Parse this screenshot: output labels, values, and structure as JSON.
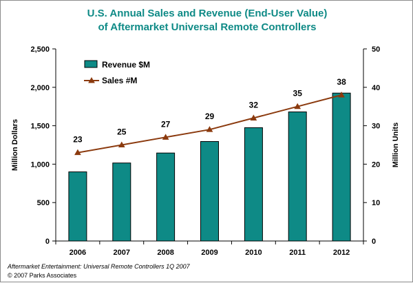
{
  "colors": {
    "title": "#0e8a86",
    "bar_fill": "#0e8a86",
    "bar_stroke": "#000000",
    "line": "#8b3a0e",
    "marker": "#8b3a0e",
    "axis": "#000000",
    "grid": "#000000"
  },
  "chart_data": {
    "type": "bar+line",
    "title": "U.S. Annual Sales and Revenue (End-User Value)",
    "subtitle": "of Aftermarket Universal Remote Controllers",
    "categories": [
      "2006",
      "2007",
      "2008",
      "2009",
      "2010",
      "2011",
      "2012"
    ],
    "series": [
      {
        "name": "Revenue $M",
        "type": "bar",
        "axis": "left",
        "values": [
          900,
          1015,
          1145,
          1295,
          1475,
          1680,
          1925
        ]
      },
      {
        "name": "Sales #M",
        "type": "line",
        "axis": "right",
        "values": [
          23,
          25,
          27,
          29,
          32,
          35,
          38
        ],
        "data_labels": [
          "23",
          "25",
          "27",
          "29",
          "32",
          "35",
          "38"
        ]
      }
    ],
    "ylabel": "Million Dollars",
    "ylim": [
      0,
      2500
    ],
    "yticks": [
      "0",
      "500",
      "1,000",
      "1,500",
      "2,000",
      "2,500"
    ],
    "y2label": "Million Units",
    "y2lim": [
      0,
      50
    ],
    "y2ticks": [
      "0",
      "10",
      "20",
      "30",
      "40",
      "50"
    ],
    "grid": false,
    "legend_position": "top-left"
  },
  "source": {
    "line1": "Aftermarket Entertainment: Universal Remote Controllers 1Q 2007",
    "line2": "© 2007 Parks Associates"
  }
}
